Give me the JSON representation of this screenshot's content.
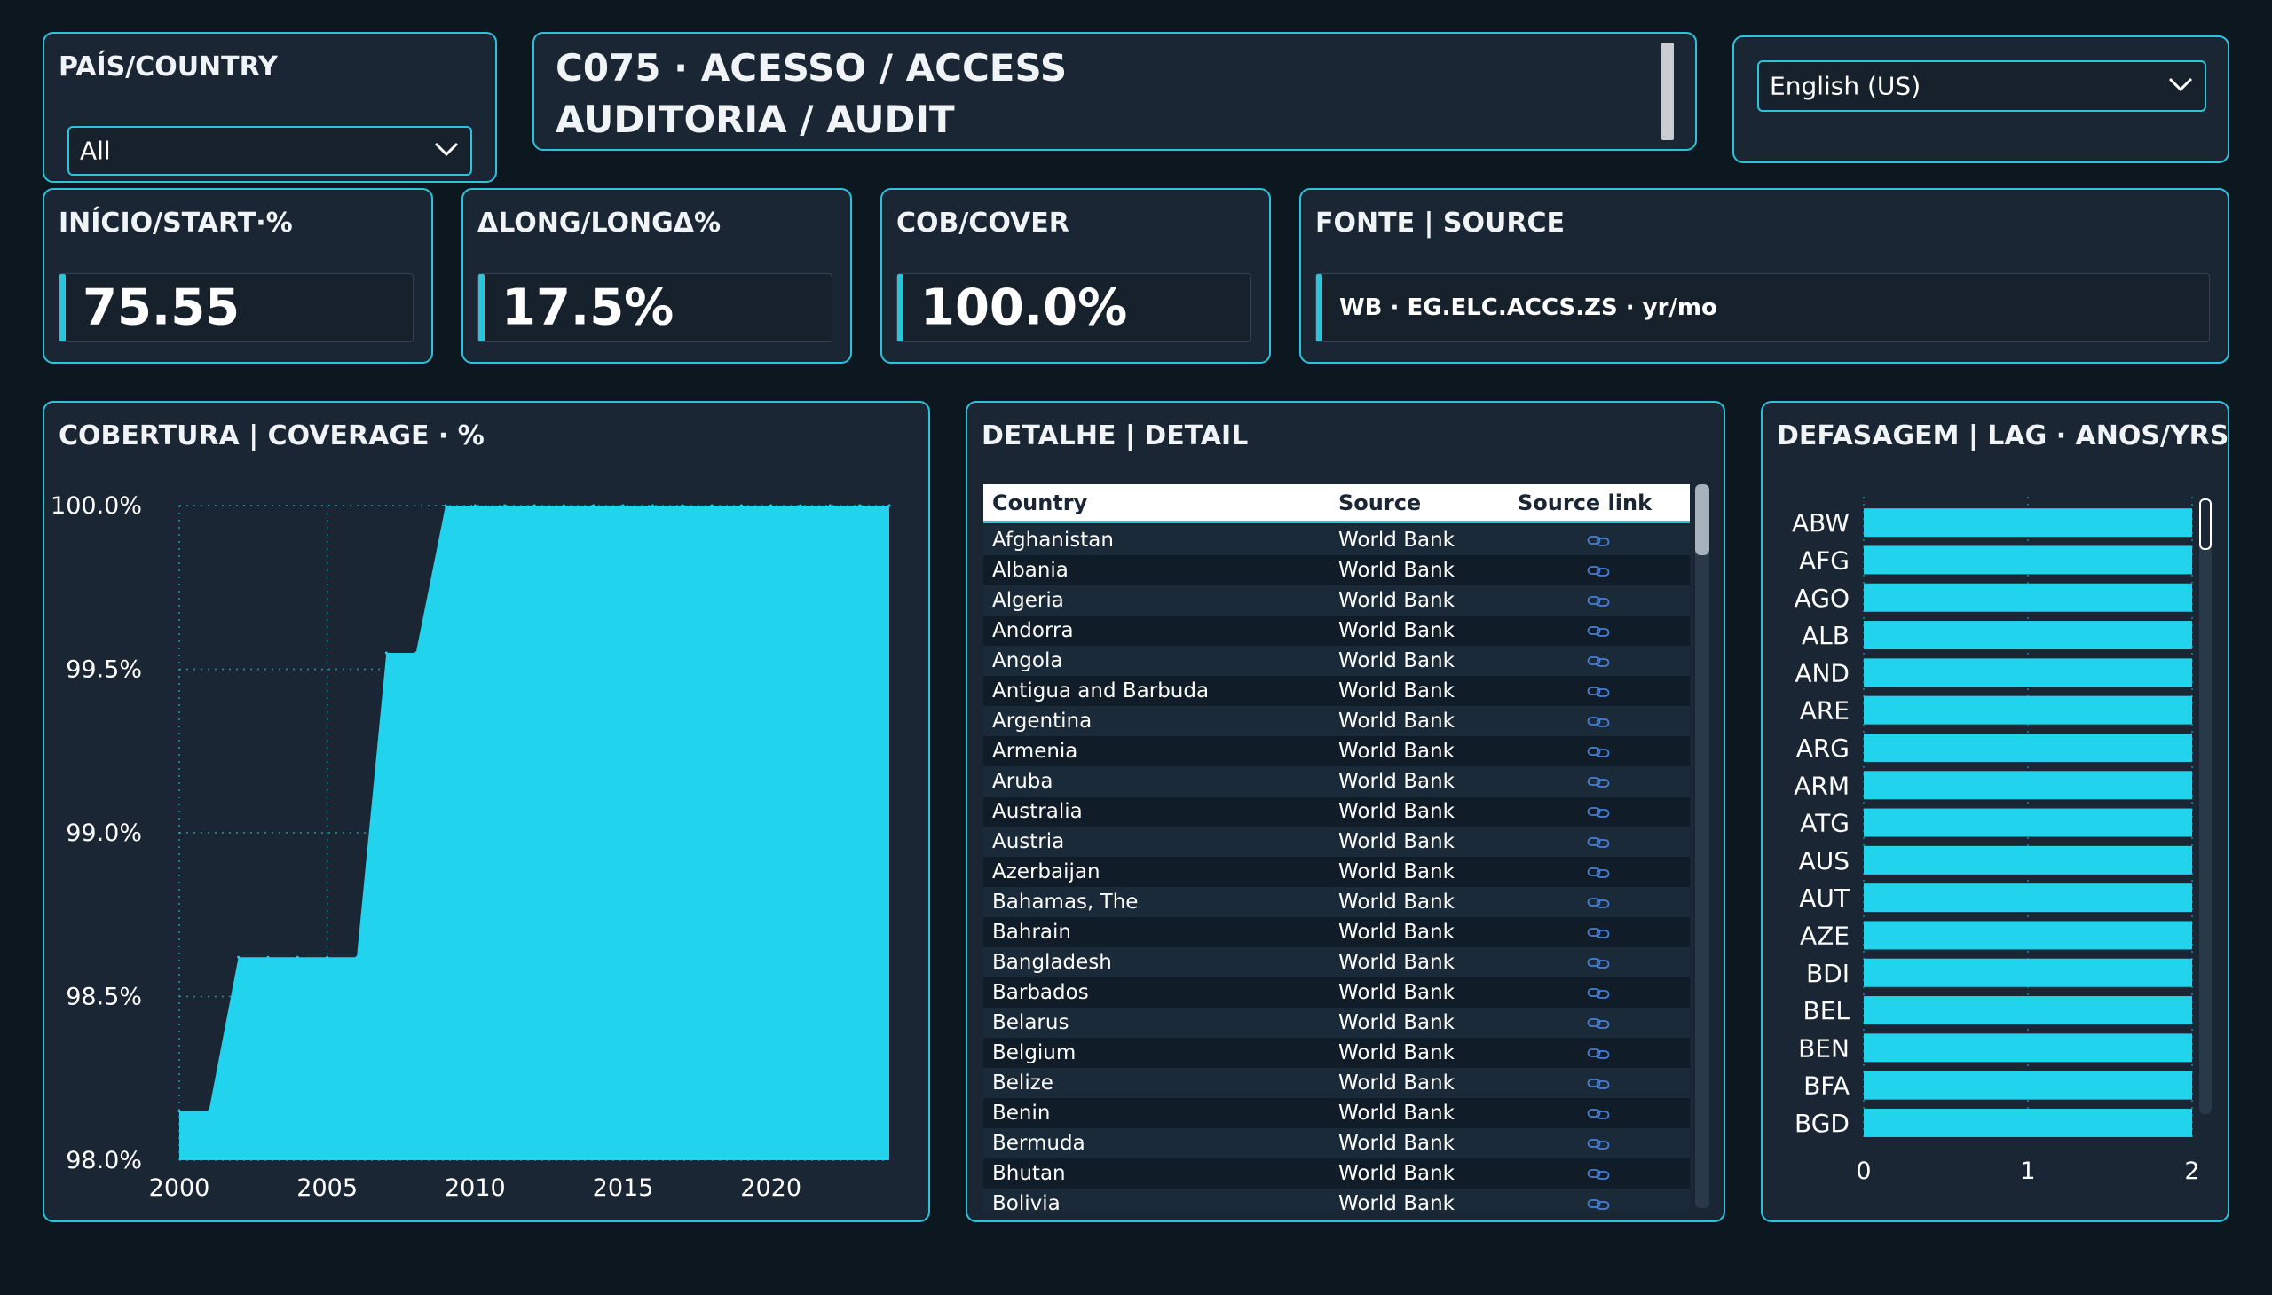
{
  "filters": {
    "country_label": "PAÍS/COUNTRY",
    "country_value": "All",
    "language_value": "English (US)"
  },
  "header": {
    "line1": "C075 · ACESSO / ACCESS",
    "line2": "AUDITORIA / AUDIT"
  },
  "kpis": {
    "start": {
      "label": "INÍCIO/START·%",
      "value": "75.55"
    },
    "long": {
      "label": "ΔLONG/LONGΔ%",
      "value": "17.5%"
    },
    "cover": {
      "label": "COB/COVER",
      "value": "100.0%"
    },
    "source": {
      "label": "FONTE | SOURCE",
      "value": "WB · EG.ELC.ACCS.ZS · yr/mo"
    }
  },
  "coverage_title": "COBERTURA | COVERAGE · %",
  "detail": {
    "title": "DETALHE | DETAIL",
    "columns": [
      "Country",
      "Source",
      "Source link"
    ],
    "rows": [
      {
        "country": "Afghanistan",
        "source": "World Bank"
      },
      {
        "country": "Albania",
        "source": "World Bank"
      },
      {
        "country": "Algeria",
        "source": "World Bank"
      },
      {
        "country": "Andorra",
        "source": "World Bank"
      },
      {
        "country": "Angola",
        "source": "World Bank"
      },
      {
        "country": "Antigua and Barbuda",
        "source": "World Bank"
      },
      {
        "country": "Argentina",
        "source": "World Bank"
      },
      {
        "country": "Armenia",
        "source": "World Bank"
      },
      {
        "country": "Aruba",
        "source": "World Bank"
      },
      {
        "country": "Australia",
        "source": "World Bank"
      },
      {
        "country": "Austria",
        "source": "World Bank"
      },
      {
        "country": "Azerbaijan",
        "source": "World Bank"
      },
      {
        "country": "Bahamas, The",
        "source": "World Bank"
      },
      {
        "country": "Bahrain",
        "source": "World Bank"
      },
      {
        "country": "Bangladesh",
        "source": "World Bank"
      },
      {
        "country": "Barbados",
        "source": "World Bank"
      },
      {
        "country": "Belarus",
        "source": "World Bank"
      },
      {
        "country": "Belgium",
        "source": "World Bank"
      },
      {
        "country": "Belize",
        "source": "World Bank"
      },
      {
        "country": "Benin",
        "source": "World Bank"
      },
      {
        "country": "Bermuda",
        "source": "World Bank"
      },
      {
        "country": "Bhutan",
        "source": "World Bank"
      },
      {
        "country": "Bolivia",
        "source": "World Bank"
      }
    ],
    "link_icon": "link-icon"
  },
  "lag_title": "DEFASAGEM | LAG · ANOS/YRS",
  "colors": {
    "accent": "#2bc4dd",
    "bar": "#22d3ee",
    "panel": "#1a2633",
    "background": "#0d171f"
  },
  "chart_data": [
    {
      "type": "area",
      "title": "COBERTURA | COVERAGE · %",
      "x": [
        2000,
        2001,
        2002,
        2003,
        2004,
        2005,
        2006,
        2007,
        2008,
        2009,
        2010,
        2011,
        2012,
        2013,
        2014,
        2015,
        2016,
        2017,
        2018,
        2019,
        2020,
        2021,
        2022,
        2023,
        2024
      ],
      "y": [
        98.15,
        98.15,
        98.62,
        98.62,
        98.62,
        98.62,
        98.62,
        99.55,
        99.55,
        100.0,
        100.0,
        100.0,
        100.0,
        100.0,
        100.0,
        100.0,
        100.0,
        100.0,
        100.0,
        100.0,
        100.0,
        100.0,
        100.0,
        100.0,
        100.0
      ],
      "xticks": [
        "2000",
        "2005",
        "2010",
        "2015",
        "2020"
      ],
      "yticks": [
        "98.0%",
        "98.5%",
        "99.0%",
        "99.5%",
        "100.0%"
      ],
      "ylim": [
        98.0,
        100.0
      ],
      "xlim": [
        2000,
        2024
      ],
      "grid": true
    },
    {
      "type": "bar",
      "orientation": "horizontal",
      "title": "DEFASAGEM | LAG · ANOS/YRS",
      "categories": [
        "ABW",
        "AFG",
        "AGO",
        "ALB",
        "AND",
        "ARE",
        "ARG",
        "ARM",
        "ATG",
        "AUS",
        "AUT",
        "AZE",
        "BDI",
        "BEL",
        "BEN",
        "BFA",
        "BGD"
      ],
      "values": [
        2,
        2,
        2,
        2,
        2,
        2,
        2,
        2,
        2,
        2,
        2,
        2,
        2,
        2,
        2,
        2,
        2
      ],
      "xticks": [
        "0",
        "1",
        "2"
      ],
      "xlim": [
        0,
        2
      ]
    }
  ]
}
